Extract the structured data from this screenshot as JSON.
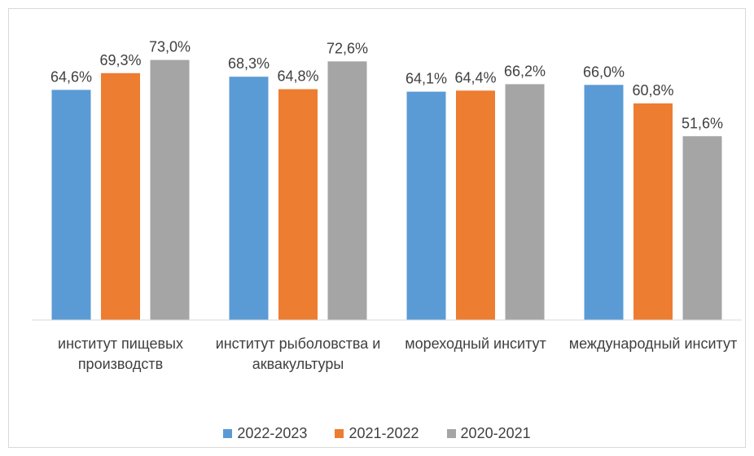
{
  "chart_data": {
    "type": "bar",
    "categories": [
      "институт пищевых производств",
      "институт рыболовства и аквакультуры",
      "мореходный инситут",
      "международный инситут"
    ],
    "series": [
      {
        "name": "2022-2023",
        "color": "#5b9bd5",
        "values": [
          64.6,
          68.3,
          64.1,
          66.0
        ],
        "value_labels": [
          "64,6%",
          "68,3%",
          "64,1%",
          "66,0%"
        ]
      },
      {
        "name": "2021-2022",
        "color": "#ed7d31",
        "values": [
          69.3,
          64.8,
          64.4,
          60.8
        ],
        "value_labels": [
          "69,3%",
          "64,8%",
          "64,4%",
          "60,8%"
        ]
      },
      {
        "name": "2020-2021",
        "color": "#a5a5a5",
        "values": [
          73.0,
          72.6,
          66.2,
          51.6
        ],
        "value_labels": [
          "73,0%",
          "72,6%",
          "66,2%",
          "51,6%"
        ]
      }
    ],
    "ylim": [
      0,
      80
    ],
    "legend": "bottom"
  }
}
